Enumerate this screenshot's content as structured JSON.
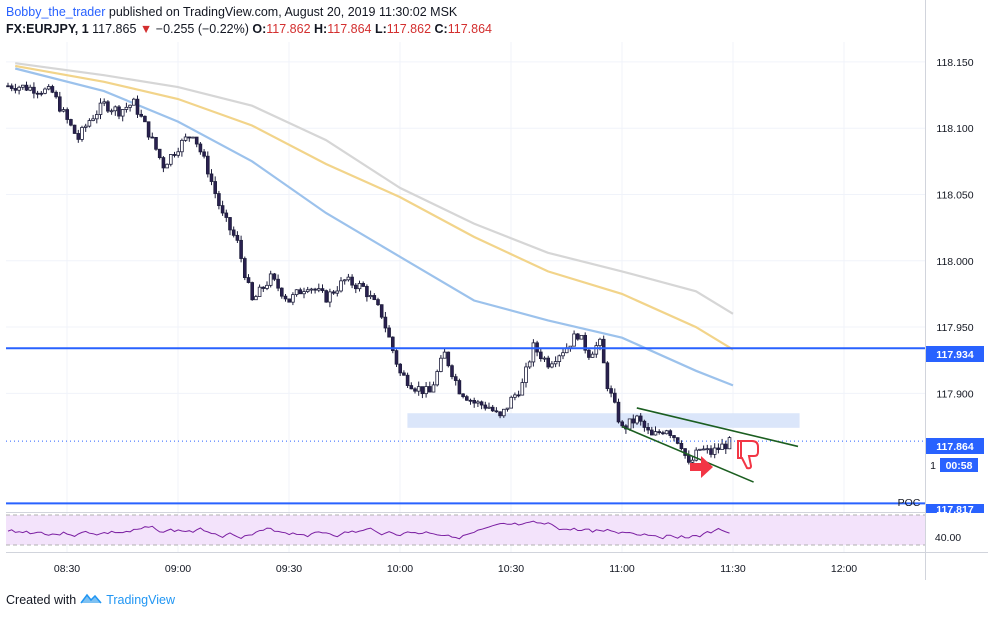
{
  "header": {
    "author": "Bobby_the_trader",
    "published": "published on TradingView.com, August 20, 2019 11:30:02 MSK",
    "symbol": "FX:EURJPY, 1",
    "last": "117.865",
    "change": "−0.255 (−0.22%)",
    "o_label": "O:",
    "o_value": "117.862",
    "h_label": "H:",
    "h_value": "117.864",
    "l_label": "L:",
    "l_value": "117.862",
    "c_label": "C:",
    "c_value": "117.864"
  },
  "footer": {
    "created_with": "Created with",
    "brand": "TradingView"
  },
  "labels": {
    "resistance": "117.934",
    "last_price": "117.864",
    "countdown": "00:58",
    "support": "117.817",
    "poc": "POC",
    "rsi_level": "40.00",
    "small_one": "1"
  },
  "colors": {
    "sma_gray": "#d6d6d6",
    "sma_yellow": "#f2d48a",
    "sma_blue": "#9cc2ec",
    "level_line": "#2962ff",
    "zone": "#dbe6fa",
    "channel": "#1b5e20",
    "rsi_line": "#7b1fa2",
    "rsi_bg": "#f3e3fb",
    "arrow": "#f23645"
  },
  "chart_data": {
    "type": "candlestick",
    "symbol": "FX:EURJPY",
    "interval": "1",
    "y_axis": {
      "ticks": [
        118.15,
        118.1,
        118.05,
        118.0,
        117.95,
        117.9
      ],
      "range": [
        117.812,
        118.162
      ]
    },
    "x_axis": {
      "ticks": [
        "08:30",
        "09:00",
        "09:30",
        "10:00",
        "10:30",
        "11:00",
        "11:30",
        "12:00"
      ]
    },
    "levels": {
      "resistance": 117.934,
      "support": 117.817,
      "last": 117.864
    },
    "zone": {
      "from": 117.874,
      "to": 117.885,
      "start": "10:02",
      "end": "11:48"
    },
    "channel": {
      "upper": [
        [
          "11:04",
          117.889
        ],
        [
          "11:40",
          117.865
        ]
      ],
      "lower": [
        [
          "11:00",
          117.875
        ],
        [
          "11:28",
          117.842
        ]
      ]
    },
    "moving_averages": [
      {
        "color": "gray",
        "points": [
          [
            "08:16",
            118.149
          ],
          [
            "08:40",
            118.14
          ],
          [
            "09:00",
            118.131
          ],
          [
            "09:20",
            118.117
          ],
          [
            "09:40",
            118.091
          ],
          [
            "10:00",
            118.055
          ],
          [
            "10:20",
            118.028
          ],
          [
            "10:40",
            118.006
          ],
          [
            "11:00",
            117.992
          ],
          [
            "11:20",
            117.977
          ],
          [
            "11:30",
            117.96
          ]
        ]
      },
      {
        "color": "yellow",
        "points": [
          [
            "08:16",
            118.147
          ],
          [
            "08:40",
            118.135
          ],
          [
            "09:00",
            118.122
          ],
          [
            "09:20",
            118.102
          ],
          [
            "09:40",
            118.073
          ],
          [
            "10:00",
            118.048
          ],
          [
            "10:20",
            118.018
          ],
          [
            "10:40",
            117.992
          ],
          [
            "11:00",
            117.975
          ],
          [
            "11:20",
            117.95
          ],
          [
            "11:30",
            117.933
          ]
        ]
      },
      {
        "color": "blue",
        "points": [
          [
            "08:16",
            118.145
          ],
          [
            "08:40",
            118.128
          ],
          [
            "09:00",
            118.105
          ],
          [
            "09:20",
            118.075
          ],
          [
            "09:40",
            118.036
          ],
          [
            "10:00",
            118.003
          ],
          [
            "10:20",
            117.97
          ],
          [
            "10:40",
            117.955
          ],
          [
            "11:00",
            117.942
          ],
          [
            "11:20",
            117.917
          ],
          [
            "11:30",
            117.906
          ]
        ]
      }
    ],
    "close_path": [
      [
        "08:16",
        118.132
      ],
      [
        "08:21",
        118.13
      ],
      [
        "08:26",
        118.127
      ],
      [
        "08:30",
        118.106
      ],
      [
        "08:33",
        118.092
      ],
      [
        "08:36",
        118.106
      ],
      [
        "08:40",
        118.118
      ],
      [
        "08:44",
        118.113
      ],
      [
        "08:48",
        118.119
      ],
      [
        "08:52",
        118.097
      ],
      [
        "08:56",
        118.072
      ],
      [
        "09:00",
        118.086
      ],
      [
        "09:04",
        118.097
      ],
      [
        "09:08",
        118.069
      ],
      [
        "09:12",
        118.034
      ],
      [
        "09:16",
        118.014
      ],
      [
        "09:20",
        117.969
      ],
      [
        "09:25",
        117.987
      ],
      [
        "09:30",
        117.97
      ],
      [
        "09:35",
        117.982
      ],
      [
        "09:40",
        117.972
      ],
      [
        "09:45",
        117.985
      ],
      [
        "09:50",
        117.98
      ],
      [
        "09:55",
        117.96
      ],
      [
        "10:00",
        117.915
      ],
      [
        "10:04",
        117.905
      ],
      [
        "10:08",
        117.9
      ],
      [
        "10:12",
        117.93
      ],
      [
        "10:16",
        117.903
      ],
      [
        "10:20",
        117.893
      ],
      [
        "10:24",
        117.89
      ],
      [
        "10:27",
        117.881
      ],
      [
        "10:30",
        117.895
      ],
      [
        "10:33",
        117.906
      ],
      [
        "10:36",
        117.935
      ],
      [
        "10:40",
        117.923
      ],
      [
        "10:45",
        117.935
      ],
      [
        "10:48",
        117.945
      ],
      [
        "10:51",
        117.93
      ],
      [
        "10:54",
        117.938
      ],
      [
        "10:56",
        117.907
      ],
      [
        "11:00",
        117.873
      ],
      [
        "11:04",
        117.881
      ],
      [
        "11:08",
        117.867
      ],
      [
        "11:12",
        117.874
      ],
      [
        "11:16",
        117.862
      ],
      [
        "11:18",
        117.845
      ],
      [
        "11:21",
        117.858
      ],
      [
        "11:24",
        117.855
      ],
      [
        "11:27",
        117.86
      ],
      [
        "11:30",
        117.864
      ]
    ],
    "rsi": {
      "level": 40.0
    }
  }
}
